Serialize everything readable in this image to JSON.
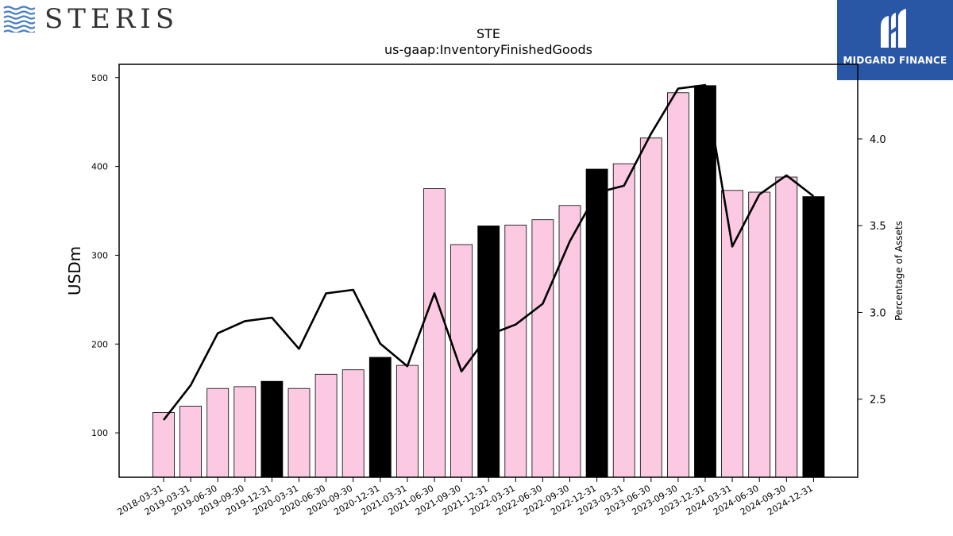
{
  "company_logo": {
    "text": "STERIS"
  },
  "sponsor_logo": {
    "text": "MIDGARD FINANCE"
  },
  "chart_data": {
    "type": "bar",
    "title": "STE",
    "subtitle": "us-gaap:InventoryFinishedGoods",
    "ylabel": "USDm",
    "y2label": "Percentage of Assets",
    "ylim": [
      50,
      515
    ],
    "y2lim": [
      2.05,
      4.43
    ],
    "yticks": [
      100,
      200,
      300,
      400,
      500
    ],
    "y2ticks": [
      "2.5",
      "3.0",
      "3.5",
      "4.0"
    ],
    "categories": [
      "2018-03-31",
      "2019-03-31",
      "2019-06-30",
      "2019-09-30",
      "2019-12-31",
      "2020-03-31",
      "2020-06-30",
      "2020-09-30",
      "2020-12-31",
      "2021-03-31",
      "2021-06-30",
      "2021-09-30",
      "2021-12-31",
      "2022-03-31",
      "2022-06-30",
      "2022-09-30",
      "2022-12-31",
      "2023-03-31",
      "2023-06-30",
      "2023-09-30",
      "2023-12-31",
      "2024-03-31",
      "2024-06-30",
      "2024-09-30",
      "2024-12-31"
    ],
    "series": [
      {
        "type": "bar",
        "values": [
          123,
          130,
          150,
          152,
          158,
          150,
          166,
          171,
          185,
          176,
          375,
          312,
          333,
          334,
          340,
          356,
          397,
          403,
          432,
          483,
          491,
          373,
          371,
          388,
          366
        ],
        "highlight": [
          false,
          false,
          false,
          false,
          true,
          false,
          false,
          false,
          true,
          false,
          false,
          false,
          true,
          false,
          false,
          false,
          true,
          false,
          false,
          false,
          true,
          false,
          false,
          false,
          true
        ]
      },
      {
        "type": "line",
        "axis": "right",
        "values": [
          2.38,
          2.58,
          2.88,
          2.95,
          2.97,
          2.79,
          3.11,
          3.13,
          2.82,
          2.69,
          3.11,
          2.66,
          2.87,
          2.93,
          3.05,
          3.41,
          3.69,
          3.73,
          4.03,
          4.29,
          4.31,
          3.38,
          3.68,
          3.79,
          3.67
        ]
      }
    ],
    "colors": {
      "bar": "#fcc9e3",
      "bar_highlight": "#000000",
      "line": "#000000",
      "bar_edge": "#000000"
    }
  }
}
